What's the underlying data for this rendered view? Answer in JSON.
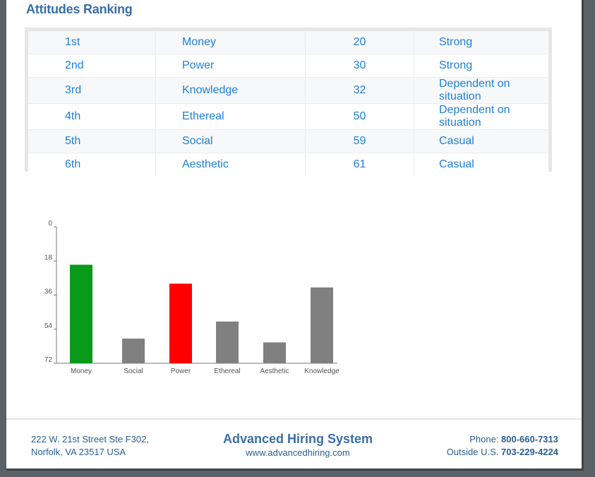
{
  "section_title": "Attitudes Ranking",
  "rows": [
    {
      "rank": "1st",
      "name": "Money",
      "score": "20",
      "level": "Strong"
    },
    {
      "rank": "2nd",
      "name": "Power",
      "score": "30",
      "level": "Strong"
    },
    {
      "rank": "3rd",
      "name": "Knowledge",
      "score": "32",
      "level": "Dependent on situation"
    },
    {
      "rank": "4th",
      "name": "Ethereal",
      "score": "50",
      "level": "Dependent on situation"
    },
    {
      "rank": "5th",
      "name": "Social",
      "score": "59",
      "level": "Casual"
    },
    {
      "rank": "6th",
      "name": "Aesthetic",
      "score": "61",
      "level": "Casual"
    }
  ],
  "chart_data": {
    "type": "bar",
    "title": "",
    "xlabel": "",
    "ylabel": "",
    "categories": [
      "Money",
      "Social",
      "Power",
      "Ethereal",
      "Aesthetic",
      "Knowledge"
    ],
    "values": [
      20,
      59,
      30,
      50,
      61,
      32
    ],
    "colors": [
      "#0a9a1a",
      "#808080",
      "#ff0000",
      "#808080",
      "#808080",
      "#808080"
    ],
    "ylim": [
      72,
      0
    ],
    "yticks": [
      "0",
      "18",
      "36",
      "54",
      "72"
    ],
    "inverted_y": true,
    "grid": false,
    "legend": "none"
  },
  "footer": {
    "address_line1": "222 W. 21st Street Ste F302,",
    "address_line2": "Norfolk, VA 23517 USA",
    "brand": "Advanced Hiring System",
    "url": "www.advancedhiring.com",
    "phone_label": "Phone:",
    "phone": "800-660-7313",
    "outside_label": "Outside U.S.",
    "outside_phone": "703-229-4224"
  }
}
